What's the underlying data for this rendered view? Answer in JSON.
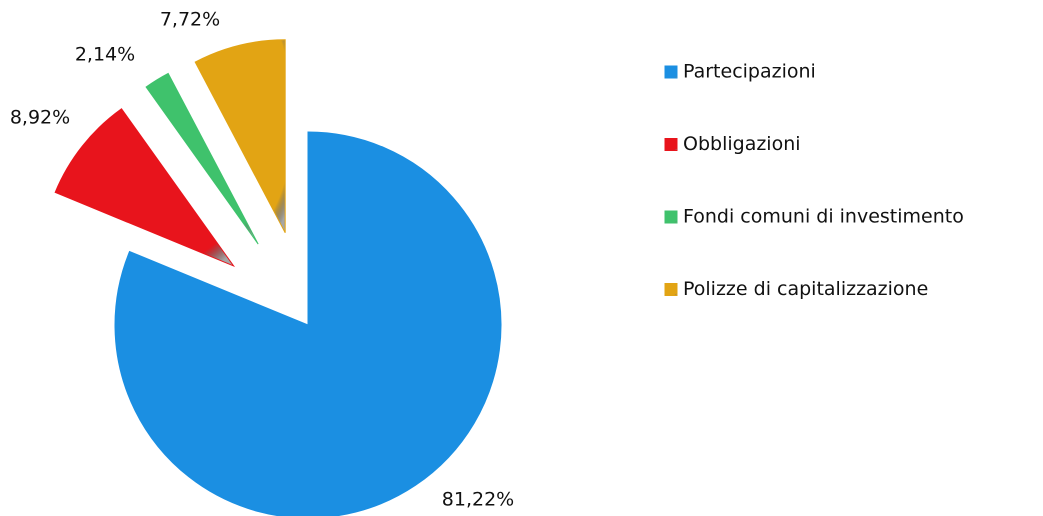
{
  "chart_data": {
    "type": "pie",
    "categories": [
      "Partecipazioni",
      "Obbligazioni",
      "Fondi comuni di investimento",
      "Polizze di capitalizzazione"
    ],
    "values": [
      81.22,
      8.92,
      2.14,
      7.72
    ],
    "value_labels": [
      "81,22%",
      "8,92%",
      "2,14%",
      "7,72%"
    ],
    "colors": [
      "#1b8fe2",
      "#e8141c",
      "#3fc26c",
      "#e2a414"
    ],
    "legend": "right"
  }
}
